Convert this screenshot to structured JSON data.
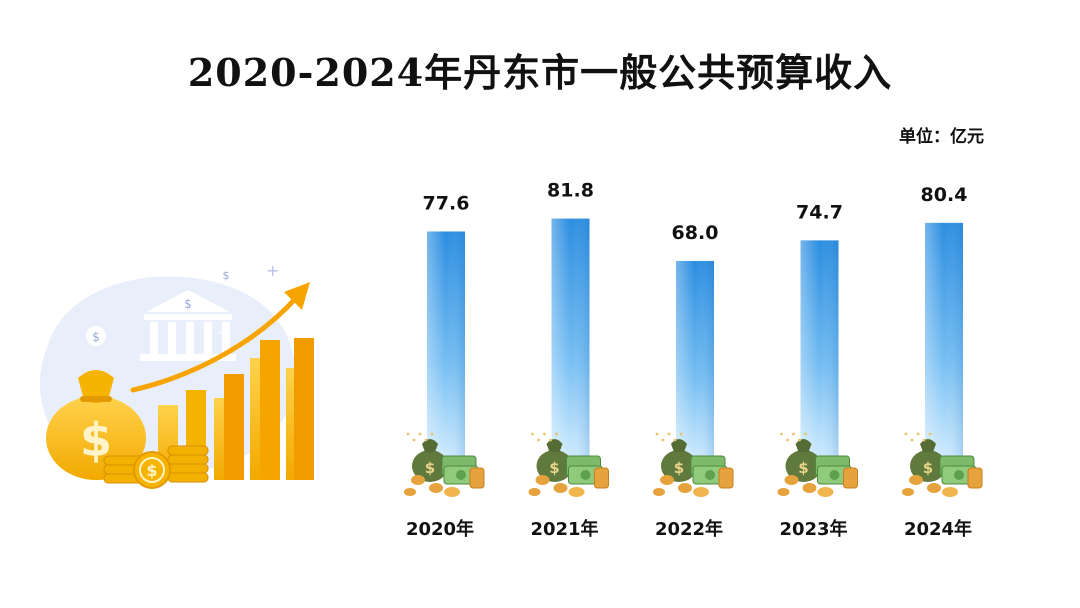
{
  "title": "2020-2024年丹东市一般公共预算收入",
  "unit": "单位：亿元",
  "colors": {
    "bar_top": "#2a8de0",
    "bar_bottom": "#d9f0ff",
    "accent_gold": "#f6b400",
    "arrow": "#f7a400",
    "money_bag": "#5f7a3c",
    "cash": "#7dbb6a",
    "coin": "#e6a23c"
  },
  "chart_data": {
    "type": "bar",
    "title": "2020-2024年丹东市一般公共预算收入",
    "categories": [
      "2020年",
      "2021年",
      "2022年",
      "2023年",
      "2024年"
    ],
    "values": [
      77.6,
      81.8,
      68.0,
      74.7,
      80.4
    ],
    "value_labels": [
      "77.6",
      "81.8",
      "68.0",
      "74.7",
      "80.4"
    ],
    "ylabel": "单位：亿元",
    "ylim": [
      0,
      95
    ],
    "grid": false,
    "legend": "none"
  }
}
